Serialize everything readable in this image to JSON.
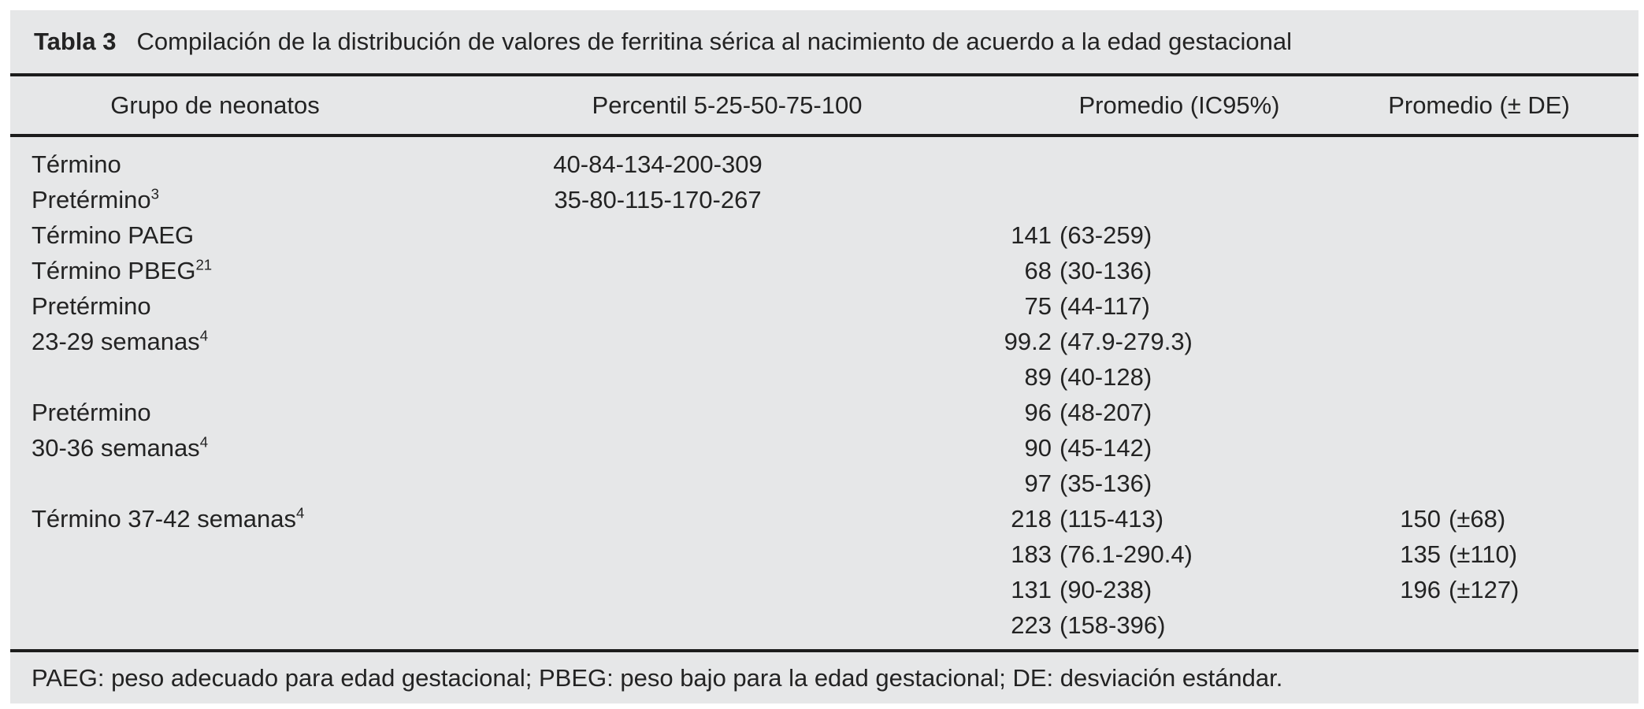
{
  "table": {
    "label": "Tabla 3",
    "title": "Compilación de la distribución de valores de ferritina sérica al nacimiento de acuerdo a la edad gestacional",
    "columns": [
      "Grupo de neonatos",
      "Percentil 5-25-50-75-100",
      "Promedio (IC95%)",
      "Promedio (± DE)"
    ],
    "rows": [
      {
        "group": "Término",
        "sup": "",
        "percentil": "40-84-134-200-309",
        "ic_val": "",
        "ic_rng": "",
        "de_val": "",
        "de_rng": ""
      },
      {
        "group": "Pretérmino",
        "sup": "3",
        "percentil": "35-80-115-170-267",
        "ic_val": "",
        "ic_rng": "",
        "de_val": "",
        "de_rng": ""
      },
      {
        "group": "Término PAEG",
        "sup": "",
        "percentil": "",
        "ic_val": "141",
        "ic_rng": "(63-259)",
        "de_val": "",
        "de_rng": ""
      },
      {
        "group": "Término PBEG",
        "sup": "21",
        "percentil": "",
        "ic_val": "68",
        "ic_rng": "(30-136)",
        "de_val": "",
        "de_rng": ""
      },
      {
        "group": "Pretérmino",
        "sup": "",
        "percentil": "",
        "ic_val": "75",
        "ic_rng": "(44-117)",
        "de_val": "",
        "de_rng": ""
      },
      {
        "group": "23-29 semanas",
        "sup": "4",
        "percentil": "",
        "ic_val": "99.2",
        "ic_rng": "(47.9-279.3)",
        "de_val": "",
        "de_rng": ""
      },
      {
        "group": "",
        "sup": "",
        "percentil": "",
        "ic_val": "89",
        "ic_rng": "(40-128)",
        "de_val": "",
        "de_rng": ""
      },
      {
        "group": "Pretérmino",
        "sup": "",
        "percentil": "",
        "ic_val": "96",
        "ic_rng": "(48-207)",
        "de_val": "",
        "de_rng": ""
      },
      {
        "group": "30-36 semanas",
        "sup": "4",
        "percentil": "",
        "ic_val": "90",
        "ic_rng": "(45-142)",
        "de_val": "",
        "de_rng": ""
      },
      {
        "group": "",
        "sup": "",
        "percentil": "",
        "ic_val": "97",
        "ic_rng": "(35-136)",
        "de_val": "",
        "de_rng": ""
      },
      {
        "group": "Término 37-42 semanas",
        "sup": "4",
        "percentil": "",
        "ic_val": "218",
        "ic_rng": "(115-413)",
        "de_val": "150",
        "de_rng": "(±68)"
      },
      {
        "group": "",
        "sup": "",
        "percentil": "",
        "ic_val": "183",
        "ic_rng": "(76.1-290.4)",
        "de_val": "135",
        "de_rng": "(±110)"
      },
      {
        "group": "",
        "sup": "",
        "percentil": "",
        "ic_val": "131",
        "ic_rng": "(90-238)",
        "de_val": "196",
        "de_rng": "(±127)"
      },
      {
        "group": "",
        "sup": "",
        "percentil": "",
        "ic_val": "223",
        "ic_rng": "(158-396)",
        "de_val": "",
        "de_rng": ""
      }
    ],
    "footnote": "PAEG: peso adecuado para edad gestacional; PBEG: peso bajo para la edad gestacional; DE: desviación estándar."
  },
  "colors": {
    "table_bg": "#e6e7e8",
    "text": "#232323",
    "rule": "#1c1c1c",
    "page_bg": "#ffffff"
  }
}
